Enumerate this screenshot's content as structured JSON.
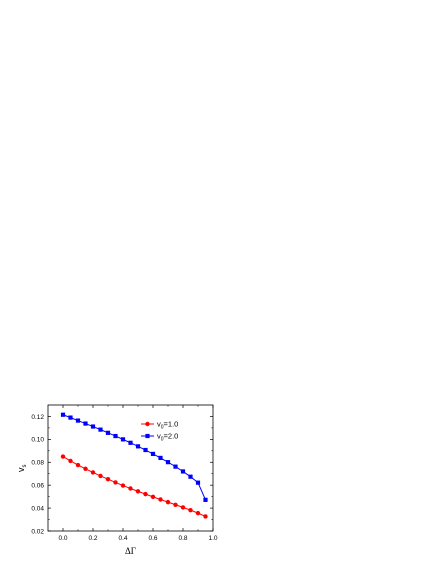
{
  "chart_data": {
    "type": "line",
    "xlabel": "ΔΓ",
    "ylabel": {
      "main": "v",
      "sub": "s"
    },
    "xlim": [
      -0.1,
      1.0
    ],
    "ylim": [
      0.02,
      0.13
    ],
    "xticks": [
      "0.0",
      "0.2",
      "0.4",
      "0.6",
      "0.8",
      "1.0"
    ],
    "yticks": [
      "0.02",
      "0.04",
      "0.06",
      "0.08",
      "0.10",
      "0.12"
    ],
    "xtick_values": [
      0.0,
      0.2,
      0.4,
      0.6,
      0.8,
      1.0
    ],
    "ytick_values": [
      0.02,
      0.04,
      0.06,
      0.08,
      0.1,
      0.12
    ],
    "grid": false,
    "legend_position": "top-right",
    "x": [
      0.0,
      0.05,
      0.1,
      0.15,
      0.2,
      0.25,
      0.3,
      0.35,
      0.4,
      0.45,
      0.5,
      0.55,
      0.6,
      0.65,
      0.7,
      0.75,
      0.8,
      0.85,
      0.9,
      0.95
    ],
    "series": [
      {
        "name": {
          "main": "v",
          "sub": "0",
          "suffix": "=1.0"
        },
        "color": "#ff0000",
        "marker": "circle",
        "values": [
          0.085,
          0.0812,
          0.0776,
          0.0743,
          0.0711,
          0.0681,
          0.0652,
          0.0624,
          0.0597,
          0.0571,
          0.0546,
          0.0522,
          0.0498,
          0.0475,
          0.0452,
          0.0429,
          0.0406,
          0.0382,
          0.0356,
          0.0327
        ]
      },
      {
        "name": {
          "main": "v",
          "sub": "0",
          "suffix": "=2.0"
        },
        "color": "#0000ff",
        "marker": "square",
        "values": [
          0.1215,
          0.119,
          0.1164,
          0.1138,
          0.1112,
          0.1085,
          0.1057,
          0.1029,
          0.1,
          0.097,
          0.0939,
          0.0907,
          0.0873,
          0.0838,
          0.0801,
          0.0762,
          0.072,
          0.0674,
          0.0622,
          0.0472
        ]
      }
    ]
  }
}
